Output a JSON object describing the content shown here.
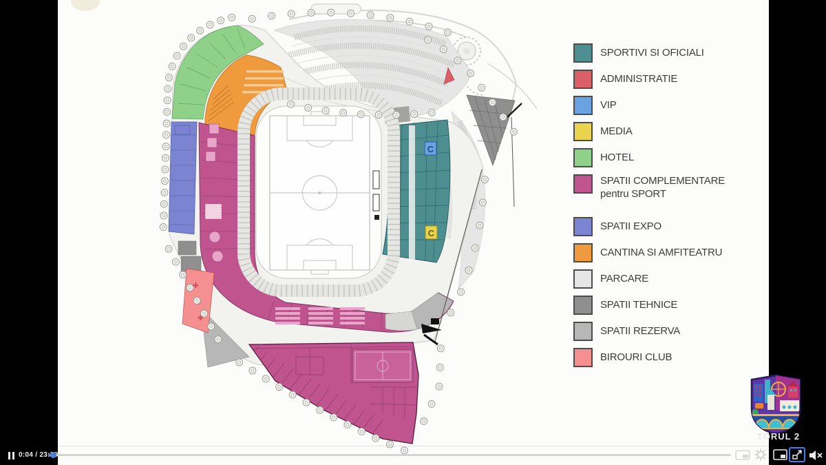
{
  "video": {
    "player": {
      "state_icon": "pause",
      "current_time": "0:04",
      "duration": "23:29",
      "time_display": "0:04 / 23:29",
      "progress_percent": 0.3,
      "accent_color": "#4a7fd4",
      "controls": [
        "pause",
        "theater-mode",
        "settings",
        "picture-in-picture",
        "fullscreen",
        "mute"
      ]
    },
    "watermark": {
      "visible_text": "TORUL 2"
    }
  },
  "slide": {
    "legend": {
      "items": [
        {
          "label": "SPORTIVI SI OFICIALI",
          "color": "#4d8f90"
        },
        {
          "label": "ADMINISTRATIE",
          "color": "#da5f66"
        },
        {
          "label": "VIP",
          "color": "#6aa3e0"
        },
        {
          "label": "MEDIA",
          "color": "#e8d44f"
        },
        {
          "label": "HOTEL",
          "color": "#8fd189"
        },
        {
          "label": "SPATII COMPLEMENTARE",
          "label2": "pentru SPORT",
          "color": "#c0548f"
        },
        {
          "label": "SPATII EXPO",
          "color": "#7b84d0"
        },
        {
          "label": "CANTINA SI AMFITEATRU",
          "color": "#f09a3e"
        },
        {
          "label": "PARCARE",
          "color": "#e6e6e6"
        },
        {
          "label": "SPATII TEHNICE",
          "color": "#8f8f8f"
        },
        {
          "label": "SPATII REZERVA",
          "color": "#b7b7b7"
        },
        {
          "label": "BIROURI CLUB",
          "color": "#f58f90"
        }
      ]
    },
    "plan": {
      "markers": [
        {
          "text": "C"
        },
        {
          "text": "C"
        }
      ]
    }
  }
}
